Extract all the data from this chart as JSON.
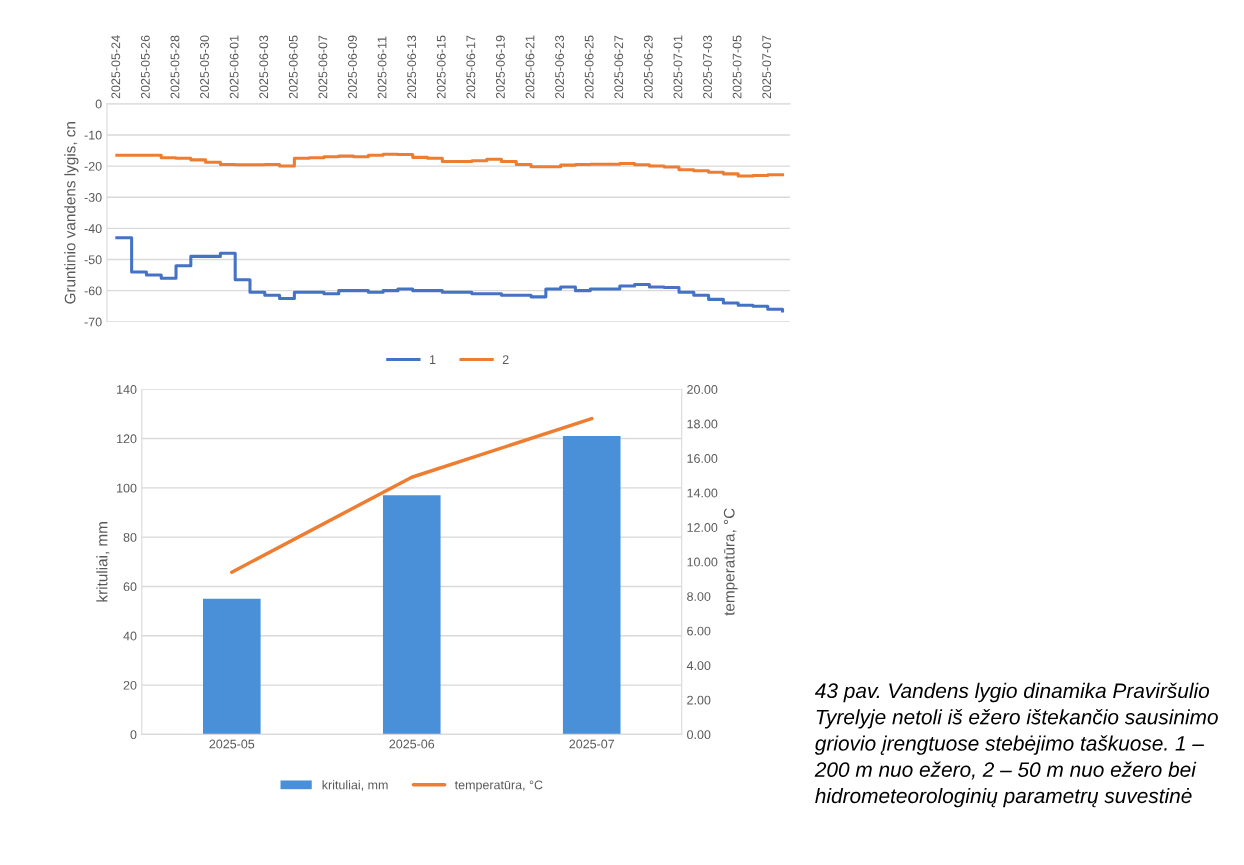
{
  "chart_data": [
    {
      "type": "step",
      "ylabel": "Gruntinio vandens lygis, cn",
      "xlim": [
        "2025-05-23T08:00",
        "2025-07-08T12:00"
      ],
      "xticks": [
        "2025-05-24",
        "2025-05-26",
        "2025-05-28",
        "2025-05-30",
        "2025-06-01",
        "2025-06-03",
        "2025-06-05",
        "2025-06-07",
        "2025-06-09",
        "2025-06-11",
        "2025-06-13",
        "2025-06-15",
        "2025-06-17",
        "2025-06-19",
        "2025-06-21",
        "2025-06-23",
        "2025-06-25",
        "2025-06-27",
        "2025-06-29",
        "2025-07-01",
        "2025-07-03",
        "2025-07-05",
        "2025-07-07"
      ],
      "ylim": [
        -70,
        0
      ],
      "yticks": [
        -70,
        -60,
        -50,
        -40,
        -30,
        -20,
        -10,
        0
      ],
      "grid": "y",
      "legend": "bottom",
      "series": [
        {
          "name": "1",
          "color": "#4472c4",
          "x": [
            "2025-05-24",
            "2025-05-25",
            "2025-05-26",
            "2025-05-27",
            "2025-05-28",
            "2025-05-29",
            "2025-05-31",
            "2025-06-01",
            "2025-06-02",
            "2025-06-03",
            "2025-06-04",
            "2025-06-05",
            "2025-06-07",
            "2025-06-08",
            "2025-06-10",
            "2025-06-11",
            "2025-06-12",
            "2025-06-13",
            "2025-06-15",
            "2025-06-17",
            "2025-06-19",
            "2025-06-21",
            "2025-06-22",
            "2025-06-23",
            "2025-06-24",
            "2025-06-25",
            "2025-06-27",
            "2025-06-28",
            "2025-06-29",
            "2025-06-30",
            "2025-07-01",
            "2025-07-02",
            "2025-07-03",
            "2025-07-04",
            "2025-07-05",
            "2025-07-06",
            "2025-07-07",
            "2025-07-08"
          ],
          "values": [
            -43,
            -54,
            -55,
            -56,
            -52,
            -49,
            -48,
            -56.5,
            -60.5,
            -61.5,
            -62.5,
            -60.5,
            -61,
            -60,
            -60.5,
            -60,
            -59.5,
            -60,
            -60.5,
            -61,
            -61.5,
            -62,
            -59.5,
            -58.8,
            -60,
            -59.5,
            -58.5,
            -58,
            -58.8,
            -59,
            -60.5,
            -61.5,
            -62.8,
            -64,
            -64.7,
            -65,
            -66,
            -66.5
          ]
        },
        {
          "name": "2",
          "color": "#ed7d31",
          "x": [
            "2025-05-24",
            "2025-05-27",
            "2025-05-28",
            "2025-05-29",
            "2025-05-30",
            "2025-05-31",
            "2025-06-01",
            "2025-06-03",
            "2025-06-04",
            "2025-06-05",
            "2025-06-06",
            "2025-06-07",
            "2025-06-08",
            "2025-06-09",
            "2025-06-10",
            "2025-06-11",
            "2025-06-12",
            "2025-06-13",
            "2025-06-14",
            "2025-06-15",
            "2025-06-17",
            "2025-06-18",
            "2025-06-19",
            "2025-06-20",
            "2025-06-21",
            "2025-06-23",
            "2025-06-24",
            "2025-06-25",
            "2025-06-27",
            "2025-06-28",
            "2025-06-29",
            "2025-06-30",
            "2025-07-01",
            "2025-07-02",
            "2025-07-03",
            "2025-07-04",
            "2025-07-05",
            "2025-07-06",
            "2025-07-07",
            "2025-07-08"
          ],
          "values": [
            -16.5,
            -17.3,
            -17.5,
            -18,
            -18.8,
            -19.5,
            -19.6,
            -19.5,
            -20,
            -17.5,
            -17.3,
            -17,
            -16.8,
            -17,
            -16.5,
            -16.2,
            -16.3,
            -17.2,
            -17.5,
            -18.5,
            -18.3,
            -17.8,
            -18.5,
            -19.5,
            -20.2,
            -19.7,
            -19.5,
            -19.4,
            -19.2,
            -19.6,
            -20,
            -20.3,
            -21.2,
            -21.5,
            -22,
            -22.5,
            -23.2,
            -23,
            -22.8,
            -22.8
          ]
        }
      ]
    },
    {
      "type": "bar",
      "categories": [
        "2025-05",
        "2025-06",
        "2025-07"
      ],
      "ylabel": "krituliai, mm",
      "y2label": "temperatūra, °C",
      "ylim": [
        0,
        140
      ],
      "yticks": [
        0,
        20,
        40,
        60,
        80,
        100,
        120,
        140
      ],
      "y2lim": [
        0,
        20
      ],
      "y2ticks": [
        {
          "value": 0,
          "label": "0.00"
        },
        {
          "value": 2,
          "label": "2.00"
        },
        {
          "value": 4,
          "label": "4.00"
        },
        {
          "value": 6,
          "label": "6.00"
        },
        {
          "value": 8,
          "label": "8.00"
        },
        {
          "value": 10,
          "label": "10.00"
        },
        {
          "value": 12,
          "label": "12.00"
        },
        {
          "value": 14,
          "label": "14.00"
        },
        {
          "value": 16,
          "label": "16.00"
        },
        {
          "value": 18,
          "label": "18.00"
        },
        {
          "value": 20,
          "label": "20.00"
        }
      ],
      "grid": "y",
      "legend": "bottom",
      "series": [
        {
          "name": "krituliai, mm",
          "color": "#4a90d9",
          "values": [
            55,
            97,
            121
          ]
        },
        {
          "name": "temperatūra, °C",
          "type": "line",
          "axis": "y2",
          "color": "#ed7d31",
          "values": [
            9.4,
            14.9,
            18.3
          ]
        }
      ]
    },
    {
      "type": "other",
      "annotations": [
        "43 pav. Vandens lygio dinamika Praviršulio Tyrelyje netoli iš ežero ištekančio sausinimo griovio įrengtuose stebėjimo taškuose. 1 – 200 m nuo ežero, 2 – 50 m nuo ežero bei hidrometeorologinių parametrų suvestinė"
      ]
    }
  ]
}
